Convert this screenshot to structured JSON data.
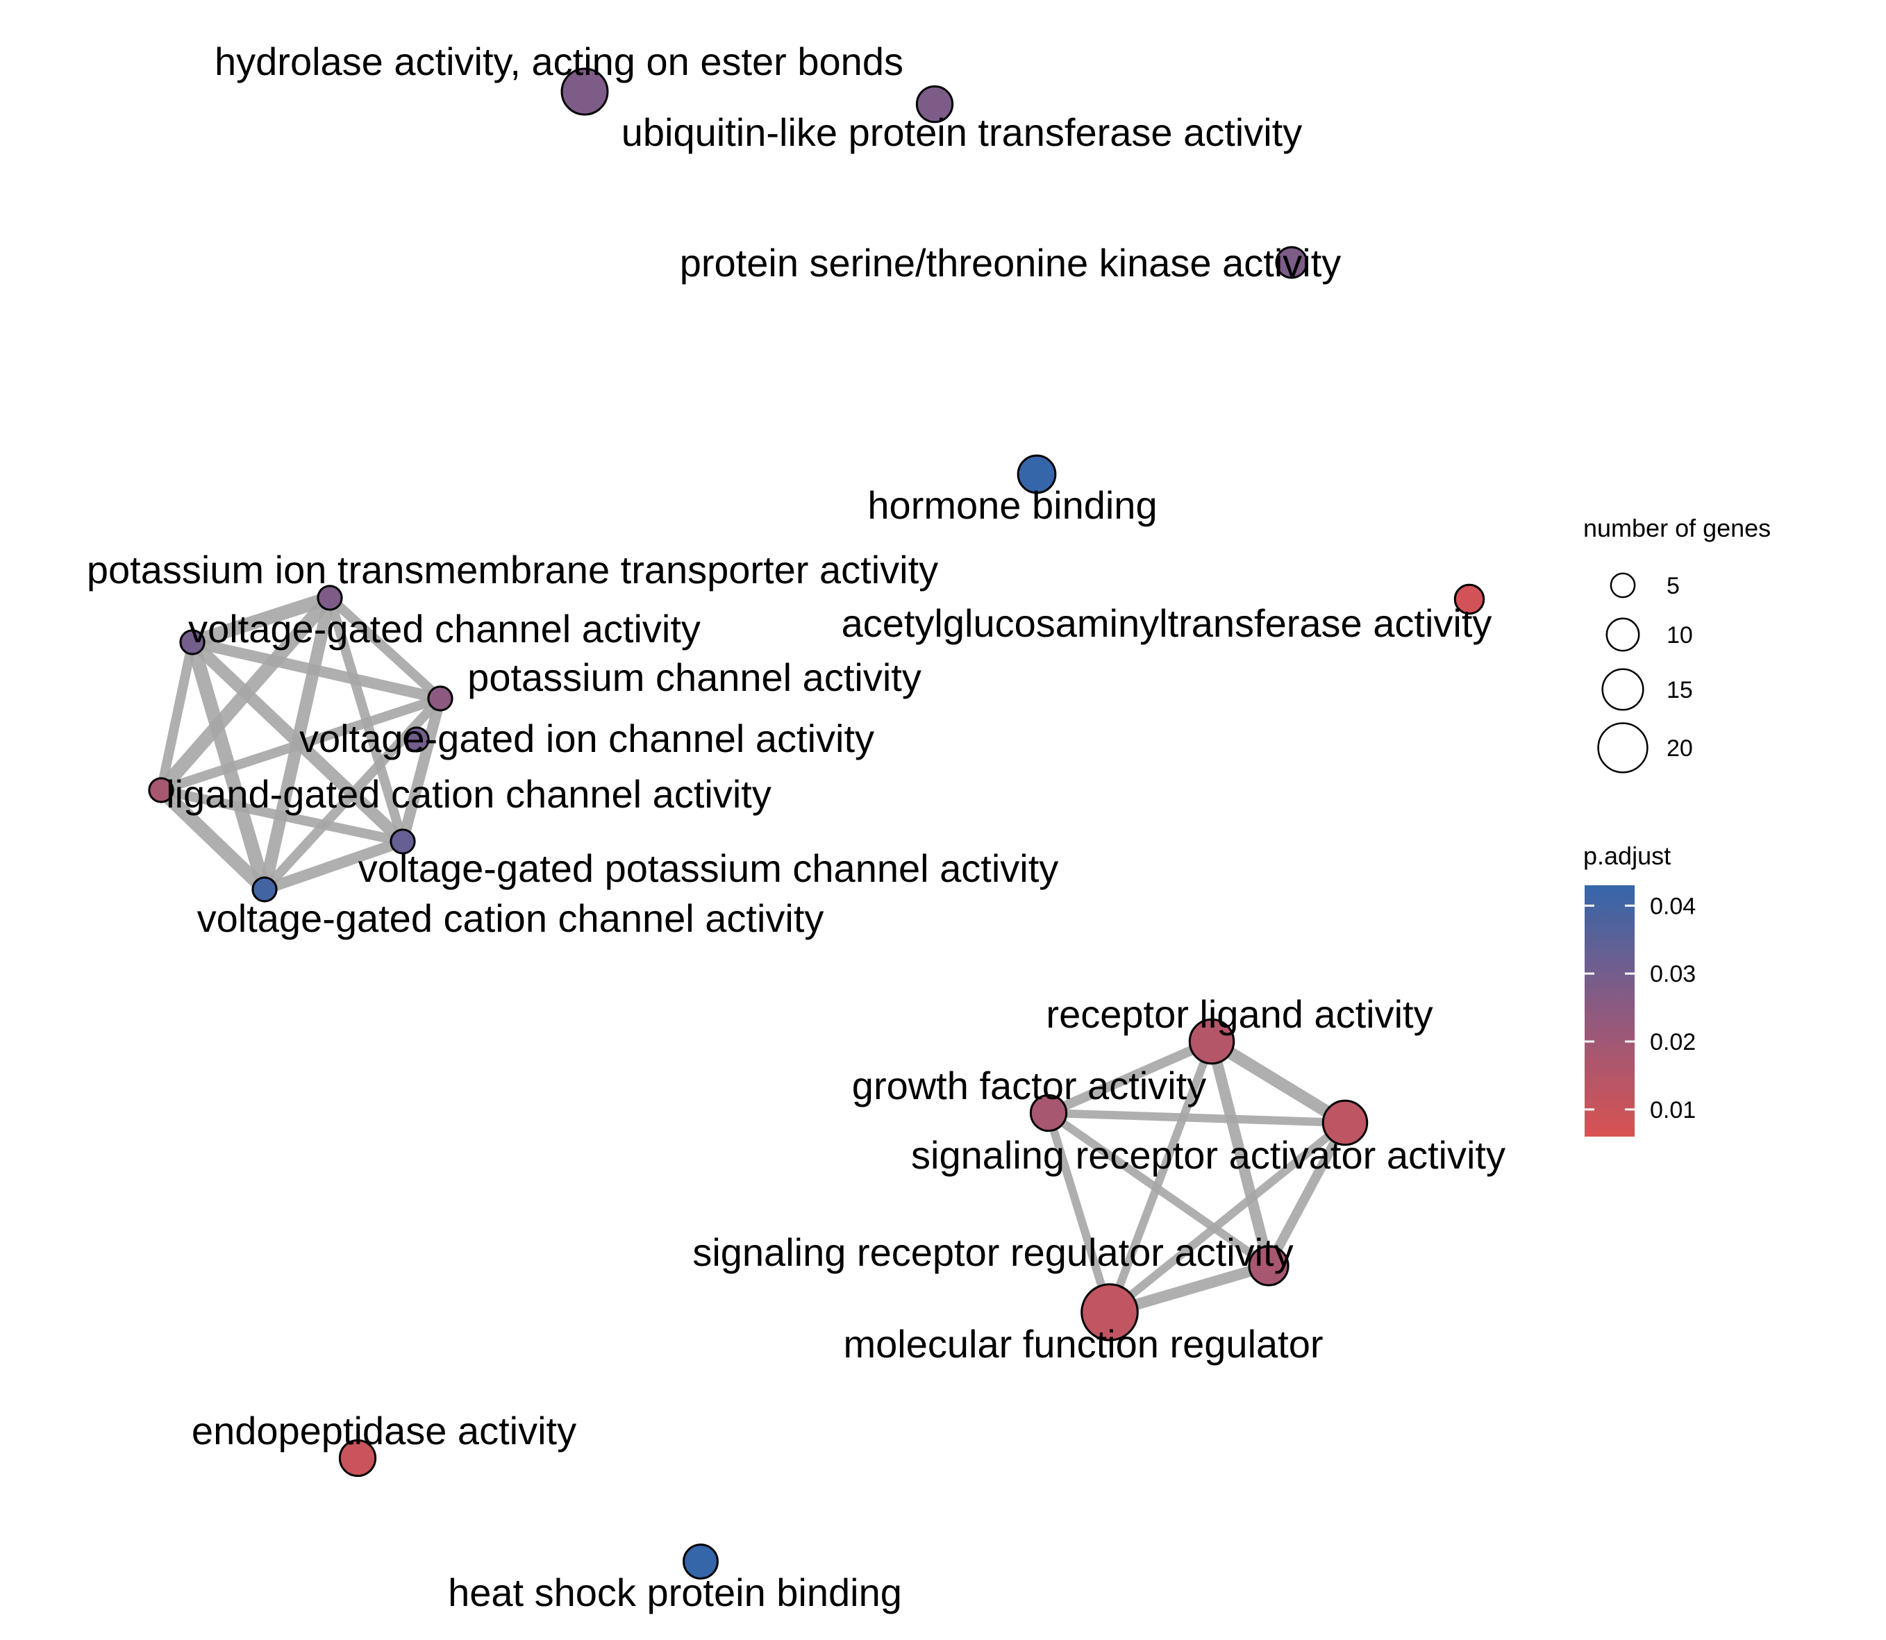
{
  "diagram": {
    "type": "enrichment-map",
    "nodes": [
      {
        "id": "hydrolase",
        "label": "hydrolase activity, acting on ester bonds",
        "p_adjust": 0.028,
        "size": 18
      },
      {
        "id": "ubiquitin",
        "label": "ubiquitin-like protein transferase activity",
        "p_adjust": 0.028,
        "size": 12
      },
      {
        "id": "serine",
        "label": "protein serine/threonine kinase activity",
        "p_adjust": 0.028,
        "size": 9
      },
      {
        "id": "hormone",
        "label": "hormone binding",
        "p_adjust": 0.043,
        "size": 13
      },
      {
        "id": "acetyl",
        "label": "acetylglucosaminyltransferase activity",
        "p_adjust": 0.008,
        "size": 8
      },
      {
        "id": "k_transporter",
        "label": "potassium ion transmembrane transporter activity",
        "p_adjust": 0.028,
        "size": 5
      },
      {
        "id": "vg_channel",
        "label": "voltage-gated channel activity",
        "p_adjust": 0.03,
        "size": 5
      },
      {
        "id": "k_channel",
        "label": "potassium channel activity",
        "p_adjust": 0.025,
        "size": 5
      },
      {
        "id": "vg_ion_channel",
        "label": "voltage-gated ion channel activity",
        "p_adjust": 0.03,
        "size": 5
      },
      {
        "id": "ligand_cation",
        "label": "ligand-gated cation channel activity",
        "p_adjust": 0.018,
        "size": 5
      },
      {
        "id": "vg_k_channel",
        "label": "voltage-gated potassium channel activity",
        "p_adjust": 0.033,
        "size": 5
      },
      {
        "id": "vg_cation",
        "label": "voltage-gated cation channel activity",
        "p_adjust": 0.04,
        "size": 5
      },
      {
        "id": "receptor_ligand",
        "label": "receptor ligand activity",
        "p_adjust": 0.015,
        "size": 17
      },
      {
        "id": "growth_factor",
        "label": "growth factor activity",
        "p_adjust": 0.018,
        "size": 12
      },
      {
        "id": "sig_activator",
        "label": "signaling receptor activator activity",
        "p_adjust": 0.013,
        "size": 17
      },
      {
        "id": "sig_regulator",
        "label": "signaling receptor regulator activity",
        "p_adjust": 0.018,
        "size": 14
      },
      {
        "id": "mol_func_reg",
        "label": "molecular function regulator",
        "p_adjust": 0.012,
        "size": 24
      },
      {
        "id": "endopeptidase",
        "label": "endopeptidase activity",
        "p_adjust": 0.01,
        "size": 12
      },
      {
        "id": "heat_shock",
        "label": "heat shock protein binding",
        "p_adjust": 0.043,
        "size": 11
      }
    ],
    "edges": [
      {
        "source": "k_transporter",
        "target": "vg_channel"
      },
      {
        "source": "k_transporter",
        "target": "k_channel"
      },
      {
        "source": "k_transporter",
        "target": "ligand_cation"
      },
      {
        "source": "k_transporter",
        "target": "vg_k_channel"
      },
      {
        "source": "k_transporter",
        "target": "vg_cation"
      },
      {
        "source": "vg_channel",
        "target": "k_channel"
      },
      {
        "source": "vg_channel",
        "target": "ligand_cation"
      },
      {
        "source": "vg_channel",
        "target": "vg_k_channel"
      },
      {
        "source": "vg_channel",
        "target": "vg_cation"
      },
      {
        "source": "k_channel",
        "target": "ligand_cation"
      },
      {
        "source": "k_channel",
        "target": "vg_k_channel"
      },
      {
        "source": "k_channel",
        "target": "vg_cation"
      },
      {
        "source": "ligand_cation",
        "target": "vg_k_channel"
      },
      {
        "source": "ligand_cation",
        "target": "vg_cation"
      },
      {
        "source": "vg_k_channel",
        "target": "vg_cation"
      },
      {
        "source": "receptor_ligand",
        "target": "growth_factor"
      },
      {
        "source": "receptor_ligand",
        "target": "sig_activator"
      },
      {
        "source": "receptor_ligand",
        "target": "sig_regulator"
      },
      {
        "source": "receptor_ligand",
        "target": "mol_func_reg"
      },
      {
        "source": "growth_factor",
        "target": "sig_activator"
      },
      {
        "source": "growth_factor",
        "target": "sig_regulator"
      },
      {
        "source": "growth_factor",
        "target": "mol_func_reg"
      },
      {
        "source": "sig_activator",
        "target": "sig_regulator"
      },
      {
        "source": "sig_activator",
        "target": "mol_func_reg"
      },
      {
        "source": "sig_regulator",
        "target": "mol_func_reg"
      }
    ]
  },
  "legend": {
    "size_title": "number of genes",
    "size_breaks": [
      {
        "label": "5",
        "value": 5
      },
      {
        "label": "10",
        "value": 10
      },
      {
        "label": "15",
        "value": 15
      },
      {
        "label": "20",
        "value": 20
      }
    ],
    "color_title": "p.adjust",
    "color_breaks": [
      {
        "label": "0.04",
        "value": 0.04
      },
      {
        "label": "0.03",
        "value": 0.03
      },
      {
        "label": "0.02",
        "value": 0.02
      },
      {
        "label": "0.01",
        "value": 0.01
      }
    ],
    "color_range": [
      0.006,
      0.043
    ],
    "color_low": "#D95252",
    "color_high": "#3566AA"
  },
  "styles": {
    "edge_color": "#A6A6A6",
    "node_stroke": "#000000"
  }
}
